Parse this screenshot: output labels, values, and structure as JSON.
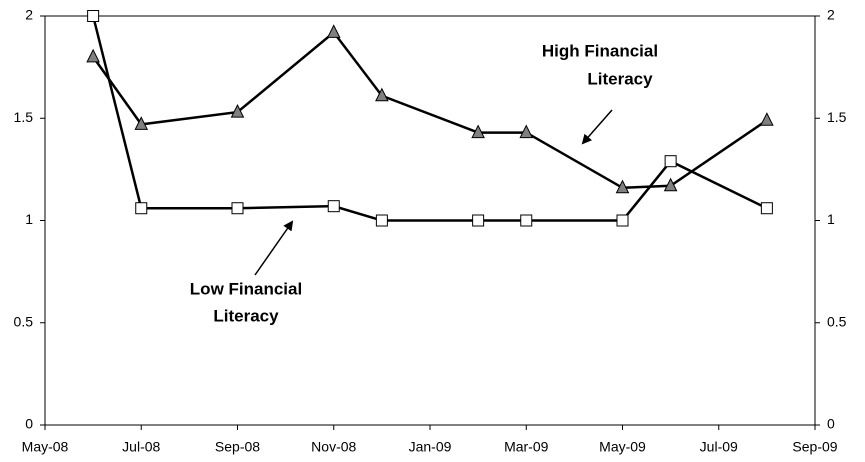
{
  "chart_data": {
    "type": "line",
    "x": [
      "2008-06",
      "2008-07",
      "2008-09",
      "2008-11",
      "2008-12",
      "2009-02",
      "2009-03",
      "2009-05",
      "2009-06",
      "2009-08"
    ],
    "series": [
      {
        "color": "#000000",
        "marker": "triangle",
        "marker_fill": "#808080",
        "values": [
          1.8,
          1.47,
          1.53,
          1.92,
          1.61,
          1.43,
          1.43,
          1.16,
          1.17,
          1.49
        ]
      },
      {
        "color": "#000000",
        "marker": "square",
        "marker_fill": "#ffffff",
        "values": [
          2.0,
          1.06,
          1.06,
          1.07,
          1.0,
          1.0,
          1.0,
          1.0,
          1.29,
          1.06
        ]
      }
    ],
    "xlim": [
      "2008-05",
      "2009-09"
    ],
    "xticks": [
      {
        "value": "2008-05",
        "label": "May-08"
      },
      {
        "value": "2008-07",
        "label": "Jul-08"
      },
      {
        "value": "2008-09",
        "label": "Sep-08"
      },
      {
        "value": "2008-11",
        "label": "Nov-08"
      },
      {
        "value": "2009-01",
        "label": "Jan-09"
      },
      {
        "value": "2009-03",
        "label": "Mar-09"
      },
      {
        "value": "2009-05",
        "label": "May-09"
      },
      {
        "value": "2009-07",
        "label": "Jul-09"
      },
      {
        "value": "2009-09",
        "label": "Sep-09"
      }
    ],
    "ylim": [
      0,
      2
    ],
    "yticks": [
      0,
      0.5,
      1,
      1.5,
      2
    ],
    "y2lim": [
      0,
      2
    ],
    "y2ticks": [
      0,
      0.5,
      1,
      1.5,
      2
    ],
    "annotations": [
      {
        "lines": [
          "High Financial",
          "Literacy"
        ]
      },
      {
        "lines": [
          "Low Financial",
          "Literacy"
        ]
      }
    ]
  }
}
